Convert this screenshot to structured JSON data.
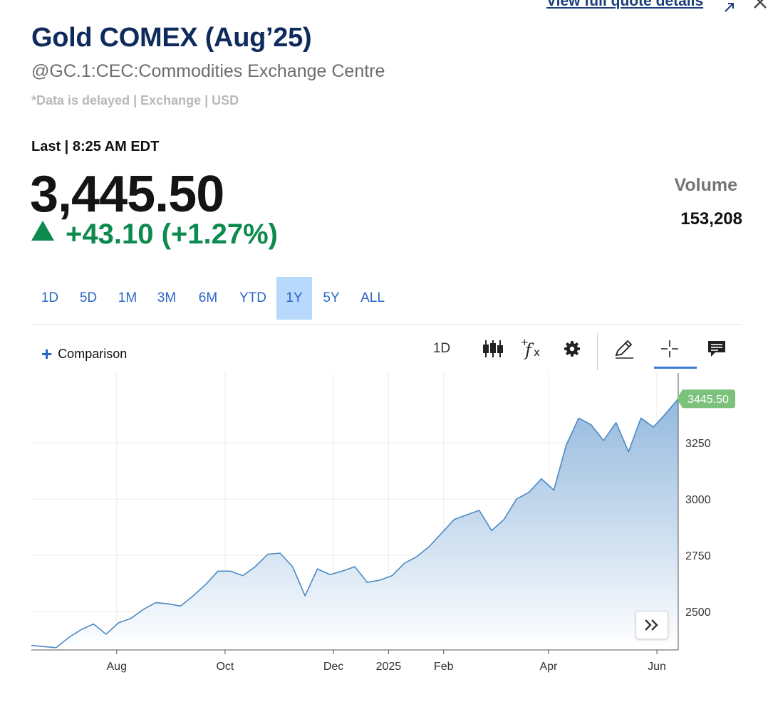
{
  "header": {
    "quote_link": "View full quote details",
    "title": "Gold COMEX (Aug’25)",
    "subtitle": "@GC.1:CEC:Commodities Exchange Centre",
    "disclaimer": "*Data is delayed | Exchange | USD",
    "last_label": "Last | 8:25 AM EDT"
  },
  "quote": {
    "price": "3,445.50",
    "change": "+43.10 (+1.27%)",
    "direction": "up",
    "volume_label": "Volume",
    "volume_value": "153,208"
  },
  "ranges": [
    "1D",
    "5D",
    "1M",
    "3M",
    "6M",
    "YTD",
    "1Y",
    "5Y",
    "ALL"
  ],
  "active_range": "1Y",
  "toolbar": {
    "comparison_label": "Comparison",
    "interval_label": "1D",
    "icons": [
      "candlestick-icon",
      "indicator-fx-icon",
      "settings-gear-icon",
      "draw-pencil-icon",
      "crosshair-icon",
      "comment-icon"
    ]
  },
  "colors": {
    "accent": "#2b66c9",
    "up": "#0d8a4e",
    "line": "#4b8ac4",
    "last_label_bg": "#7cc17c"
  },
  "chart_data": {
    "type": "area",
    "title": "",
    "last_value_label": "3445.50",
    "y_ticks": [
      2500,
      2750,
      3000,
      3250
    ],
    "ylim": [
      2330,
      3560
    ],
    "x_tick_labels": [
      {
        "label": "Aug",
        "date": "2024-08-01"
      },
      {
        "label": "Oct",
        "date": "2024-10-01"
      },
      {
        "label": "Dec",
        "date": "2024-12-01"
      },
      {
        "label": "2025",
        "date": "2025-01-01"
      },
      {
        "label": "Feb",
        "date": "2025-02-01"
      },
      {
        "label": "Apr",
        "date": "2025-04-01"
      },
      {
        "label": "Jun",
        "date": "2025-06-01"
      }
    ],
    "xlim": [
      "2024-06-14",
      "2025-06-13"
    ],
    "grid": true,
    "series": [
      {
        "points": [
          [
            "2024-06-14",
            2350
          ],
          [
            "2024-06-21",
            2345
          ],
          [
            "2024-06-28",
            2340
          ],
          [
            "2024-07-05",
            2385
          ],
          [
            "2024-07-12",
            2420
          ],
          [
            "2024-07-19",
            2445
          ],
          [
            "2024-07-26",
            2400
          ],
          [
            "2024-08-02",
            2450
          ],
          [
            "2024-08-09",
            2470
          ],
          [
            "2024-08-16",
            2510
          ],
          [
            "2024-08-23",
            2540
          ],
          [
            "2024-08-30",
            2535
          ],
          [
            "2024-09-06",
            2525
          ],
          [
            "2024-09-13",
            2570
          ],
          [
            "2024-09-20",
            2620
          ],
          [
            "2024-09-27",
            2680
          ],
          [
            "2024-10-04",
            2680
          ],
          [
            "2024-10-11",
            2660
          ],
          [
            "2024-10-18",
            2700
          ],
          [
            "2024-10-25",
            2755
          ],
          [
            "2024-11-01",
            2760
          ],
          [
            "2024-11-08",
            2700
          ],
          [
            "2024-11-15",
            2570
          ],
          [
            "2024-11-22",
            2690
          ],
          [
            "2024-11-29",
            2665
          ],
          [
            "2024-12-06",
            2680
          ],
          [
            "2024-12-13",
            2700
          ],
          [
            "2024-12-20",
            2630
          ],
          [
            "2024-12-27",
            2640
          ],
          [
            "2025-01-03",
            2660
          ],
          [
            "2025-01-10",
            2715
          ],
          [
            "2025-01-17",
            2745
          ],
          [
            "2025-01-24",
            2790
          ],
          [
            "2025-01-31",
            2850
          ],
          [
            "2025-02-07",
            2910
          ],
          [
            "2025-02-14",
            2930
          ],
          [
            "2025-02-21",
            2950
          ],
          [
            "2025-02-28",
            2860
          ],
          [
            "2025-03-07",
            2910
          ],
          [
            "2025-03-14",
            3000
          ],
          [
            "2025-03-21",
            3030
          ],
          [
            "2025-03-28",
            3090
          ],
          [
            "2025-04-04",
            3040
          ],
          [
            "2025-04-11",
            3240
          ],
          [
            "2025-04-18",
            3360
          ],
          [
            "2025-04-25",
            3330
          ],
          [
            "2025-05-02",
            3260
          ],
          [
            "2025-05-09",
            3340
          ],
          [
            "2025-05-16",
            3210
          ],
          [
            "2025-05-23",
            3360
          ],
          [
            "2025-05-30",
            3320
          ],
          [
            "2025-06-06",
            3380
          ],
          [
            "2025-06-13",
            3445.5
          ]
        ]
      }
    ]
  }
}
